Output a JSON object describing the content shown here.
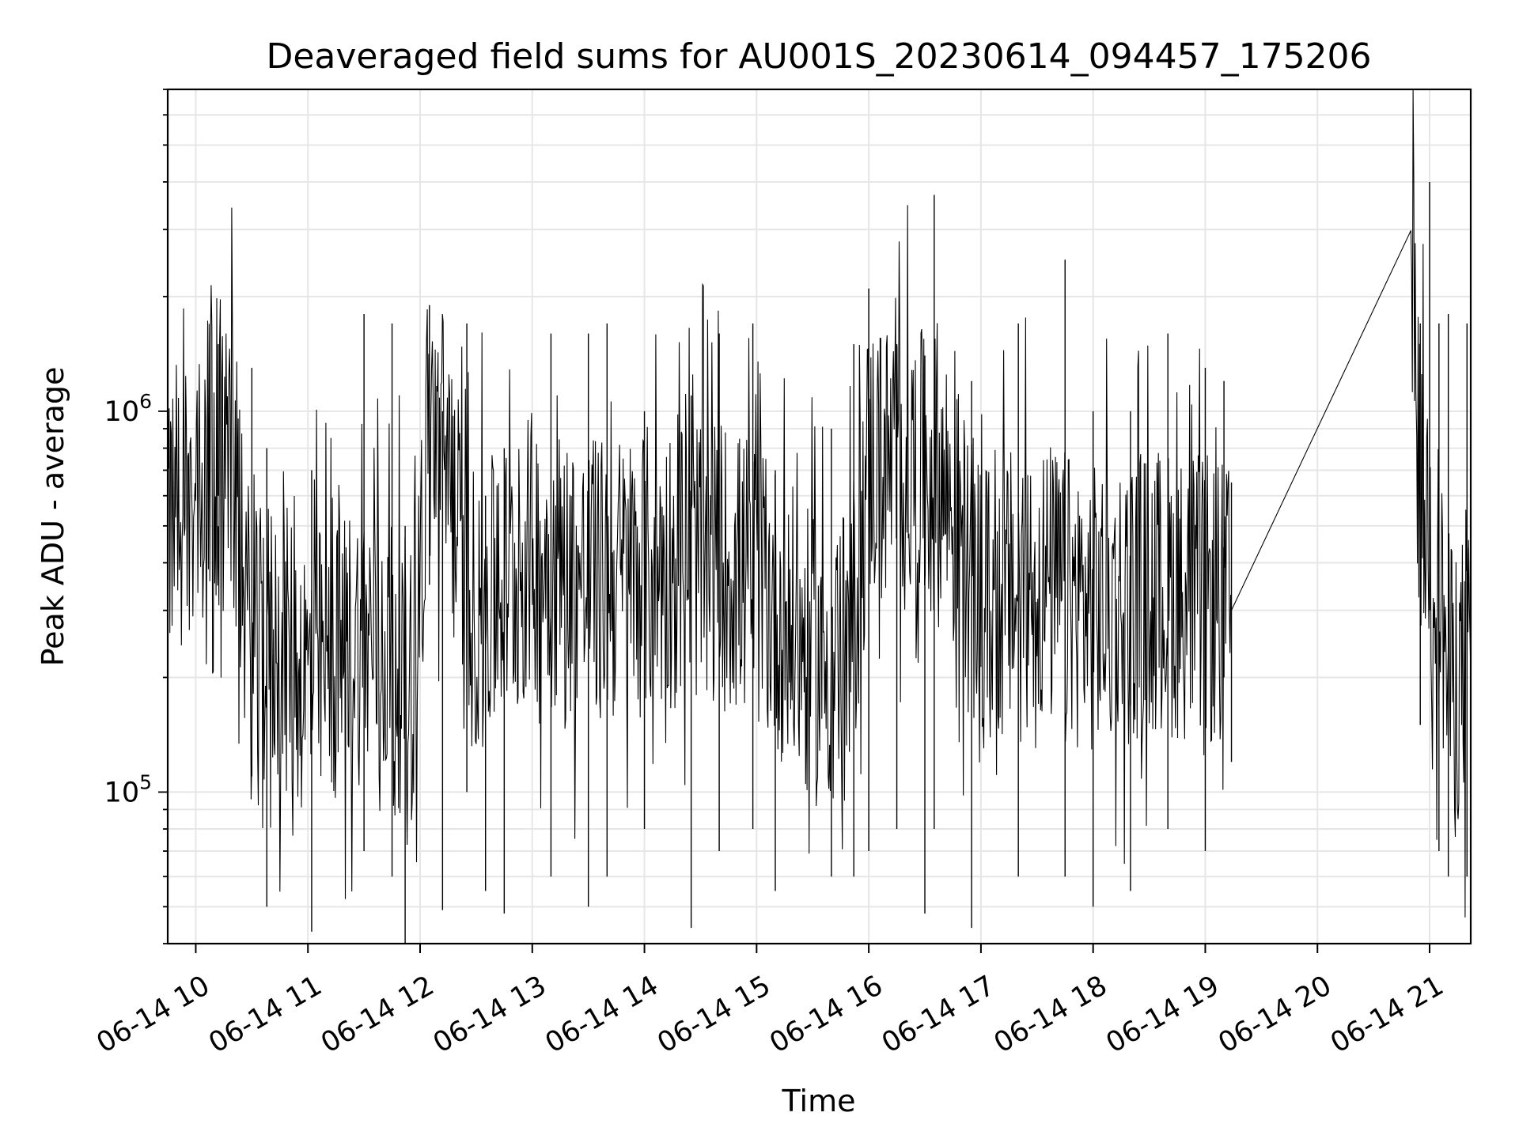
{
  "chart_data": {
    "type": "line",
    "title": "Deaveraged field sums for AU001S_20230614_094457_175206",
    "xlabel": "Time",
    "ylabel": "Peak ADU - average",
    "yscale": "log",
    "ylim": [
      40000,
      7000000
    ],
    "xlim": [
      "2023-06-14 09:45",
      "2023-06-14 21:22"
    ],
    "grid": true,
    "line_color": "#000000",
    "grid_color": "#e6e6e6",
    "x_ticks": [
      {
        "t": "2023-06-14 10:00",
        "label": "06-14 10"
      },
      {
        "t": "2023-06-14 11:00",
        "label": "06-14 11"
      },
      {
        "t": "2023-06-14 12:00",
        "label": "06-14 12"
      },
      {
        "t": "2023-06-14 13:00",
        "label": "06-14 13"
      },
      {
        "t": "2023-06-14 14:00",
        "label": "06-14 14"
      },
      {
        "t": "2023-06-14 15:00",
        "label": "06-14 15"
      },
      {
        "t": "2023-06-14 16:00",
        "label": "06-14 16"
      },
      {
        "t": "2023-06-14 17:00",
        "label": "06-14 17"
      },
      {
        "t": "2023-06-14 18:00",
        "label": "06-14 18"
      },
      {
        "t": "2023-06-14 19:00",
        "label": "06-14 19"
      },
      {
        "t": "2023-06-14 20:00",
        "label": "06-14 20"
      },
      {
        "t": "2023-06-14 21:00",
        "label": "06-14 21"
      }
    ],
    "y_ticks": [
      {
        "value": 100000,
        "base": "10",
        "exp": "5"
      },
      {
        "value": 1000000,
        "base": "10",
        "exp": "6"
      }
    ],
    "series": [
      {
        "x": [
          "2023-06-14 09:45",
          "2023-06-14 10:00",
          "2023-06-14 10:12",
          "2023-06-14 10:20",
          "2023-06-14 10:30",
          "2023-06-14 10:40",
          "2023-06-14 10:50",
          "2023-06-14 11:00",
          "2023-06-14 11:15",
          "2023-06-14 11:30",
          "2023-06-14 11:45",
          "2023-06-14 11:55",
          "2023-06-14 12:05",
          "2023-06-14 12:15",
          "2023-06-14 12:25",
          "2023-06-14 12:40",
          "2023-06-14 13:00",
          "2023-06-14 13:30",
          "2023-06-14 14:00",
          "2023-06-14 14:30",
          "2023-06-14 15:00",
          "2023-06-14 15:30",
          "2023-06-14 15:50",
          "2023-06-14 16:00",
          "2023-06-14 16:20",
          "2023-06-14 16:40",
          "2023-06-14 17:00",
          "2023-06-14 17:30",
          "2023-06-14 18:00",
          "2023-06-14 18:30",
          "2023-06-14 19:00",
          "2023-06-14 19:14",
          "2023-06-14 20:50",
          "2023-06-14 20:55",
          "2023-06-14 21:00",
          "2023-06-14 21:05",
          "2023-06-14 21:10",
          "2023-06-14 21:22"
        ],
        "y": [
          550000,
          620000,
          850000,
          700000,
          220000,
          250000,
          230000,
          200000,
          220000,
          260000,
          240000,
          180000,
          900000,
          780000,
          300000,
          320000,
          420000,
          350000,
          380000,
          420000,
          360000,
          220000,
          230000,
          750000,
          700000,
          650000,
          300000,
          360000,
          300000,
          340000,
          320000,
          300000,
          2800000,
          600000,
          500000,
          350000,
          200000,
          200000
        ],
        "peaks": [
          {
            "t": "2023-06-14 10:12",
            "high": 1500000,
            "low": 600000
          },
          {
            "t": "2023-06-14 10:30",
            "high": 1300000,
            "low": 110000
          },
          {
            "t": "2023-06-14 10:38",
            "high": 800000,
            "low": 50000
          },
          {
            "t": "2023-06-14 11:02",
            "high": 700000,
            "low": 43000
          },
          {
            "t": "2023-06-14 11:30",
            "high": 1800000,
            "low": 70000
          },
          {
            "t": "2023-06-14 11:45",
            "high": 1700000,
            "low": 60000
          },
          {
            "t": "2023-06-14 11:52",
            "high": 500000,
            "low": 40000
          },
          {
            "t": "2023-06-14 12:05",
            "high": 1900000,
            "low": 350000
          },
          {
            "t": "2023-06-14 12:12",
            "high": 1000000,
            "low": 49000
          },
          {
            "t": "2023-06-14 12:25",
            "high": 1700000,
            "low": 100000
          },
          {
            "t": "2023-06-14 12:35",
            "high": 600000,
            "low": 55000
          },
          {
            "t": "2023-06-14 12:45",
            "high": 800000,
            "low": 48000
          },
          {
            "t": "2023-06-14 13:10",
            "high": 1600000,
            "low": 60000
          },
          {
            "t": "2023-06-14 13:30",
            "high": 1600000,
            "low": 50000
          },
          {
            "t": "2023-06-14 13:40",
            "high": 1700000,
            "low": 60000
          },
          {
            "t": "2023-06-14 14:00",
            "high": 1000000,
            "low": 80000
          },
          {
            "t": "2023-06-14 14:25",
            "high": 1100000,
            "low": 44000
          },
          {
            "t": "2023-06-14 14:40",
            "high": 1600000,
            "low": 70000
          },
          {
            "t": "2023-06-14 14:58",
            "high": 1700000,
            "low": 80000
          },
          {
            "t": "2023-06-14 15:10",
            "high": 700000,
            "low": 55000
          },
          {
            "t": "2023-06-14 15:40",
            "high": 900000,
            "low": 60000
          },
          {
            "t": "2023-06-14 15:52",
            "high": 1500000,
            "low": 60000
          },
          {
            "t": "2023-06-14 16:00",
            "high": 2100000,
            "low": 70000
          },
          {
            "t": "2023-06-14 16:15",
            "high": 1500000,
            "low": 80000
          },
          {
            "t": "2023-06-14 16:30",
            "high": 1400000,
            "low": 48000
          },
          {
            "t": "2023-06-14 16:35",
            "high": 3700000,
            "low": 80000
          },
          {
            "t": "2023-06-14 16:55",
            "high": 1200000,
            "low": 44000
          },
          {
            "t": "2023-06-14 17:20",
            "high": 1700000,
            "low": 60000
          },
          {
            "t": "2023-06-14 17:45",
            "high": 2500000,
            "low": 60000
          },
          {
            "t": "2023-06-14 18:00",
            "high": 1000000,
            "low": 50000
          },
          {
            "t": "2023-06-14 18:20",
            "high": 1000000,
            "low": 55000
          },
          {
            "t": "2023-06-14 18:40",
            "high": 1600000,
            "low": 80000
          },
          {
            "t": "2023-06-14 19:00",
            "high": 1300000,
            "low": 70000
          },
          {
            "t": "2023-06-14 19:10",
            "high": 1200000,
            "low": 200000
          },
          {
            "t": "2023-06-14 19:14",
            "high": 650000,
            "low": 120000
          },
          {
            "t": "2023-06-14 20:55",
            "high": 1700000,
            "low": 150000
          },
          {
            "t": "2023-06-14 21:00",
            "high": 4000000,
            "low": 300000
          },
          {
            "t": "2023-06-14 21:05",
            "high": 1700000,
            "low": 70000
          },
          {
            "t": "2023-06-14 21:10",
            "high": 1800000,
            "low": 60000
          },
          {
            "t": "2023-06-14 21:20",
            "high": 1700000,
            "low": 60000
          }
        ]
      }
    ]
  }
}
